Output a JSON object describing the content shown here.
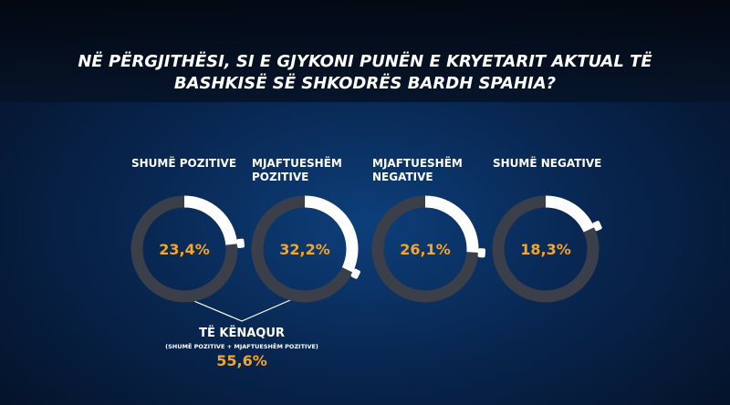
{
  "title": "NË PËRGJITHËSI, SI E GJYKONI PUNËN E KRYETARIT AKTUAL TË BASHKISË SË SHKODRËS BARDH SPAHIA?",
  "chart_data": {
    "type": "donut",
    "categories": [
      "SHUMË POZITIVE",
      "MJAFTUESHËM POZITIVE",
      "MJAFTUESHËM NEGATIVE",
      "SHUMË NEGATIVE"
    ],
    "values": [
      23.4,
      32.2,
      26.1,
      18.3
    ],
    "value_labels": [
      "23,4%",
      "32,2%",
      "26,1%",
      "18,3%"
    ],
    "color": "#ffffff",
    "track_color": "#3a3f4a",
    "label_color": "#f5a623",
    "summary": {
      "label": "TË KËNAQUR",
      "note": "(SHUMË POZITIVE + MJAFTUESHËM POZITIVE)",
      "value": 55.6,
      "value_label": "55,6%"
    }
  }
}
